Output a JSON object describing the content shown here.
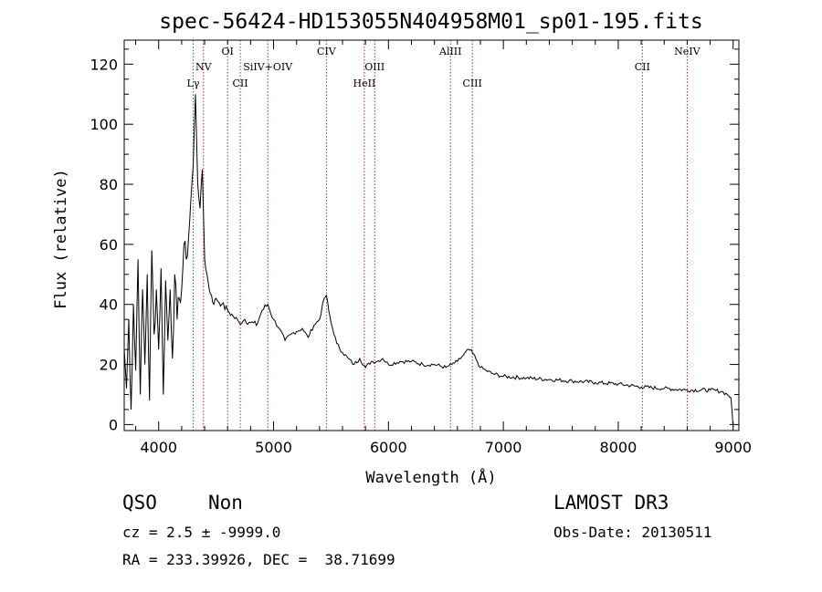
{
  "chart_data": {
    "type": "line",
    "title": "spec-56424-HD153055N404958M01_sp01-195.fits",
    "xlabel": "Wavelength (Å)",
    "ylabel": "Flux (relative)",
    "xlim": [
      3700,
      9050
    ],
    "ylim": [
      -2,
      128
    ],
    "x_ticks": [
      4000,
      5000,
      6000,
      7000,
      8000,
      9000
    ],
    "y_ticks": [
      0,
      20,
      40,
      60,
      80,
      100,
      120
    ],
    "grid": false,
    "series": [
      {
        "x": [
          3700,
          3720,
          3740,
          3760,
          3780,
          3800,
          3820,
          3840,
          3860,
          3880,
          3900,
          3920,
          3940,
          3960,
          3980,
          4000,
          4020,
          4040,
          4060,
          4080,
          4100,
          4120,
          4140,
          4160,
          4180,
          4200,
          4220,
          4240,
          4260,
          4280,
          4300,
          4320,
          4340,
          4360,
          4380,
          4400,
          4420,
          4440,
          4460,
          4480,
          4500,
          4550,
          4600,
          4650,
          4700,
          4750,
          4800,
          4850,
          4900,
          4950,
          5000,
          5050,
          5100,
          5150,
          5200,
          5250,
          5300,
          5350,
          5400,
          5440,
          5460,
          5480,
          5500,
          5550,
          5600,
          5650,
          5700,
          5750,
          5800,
          5850,
          5900,
          5950,
          6000,
          6100,
          6200,
          6300,
          6400,
          6500,
          6550,
          6600,
          6650,
          6700,
          6730,
          6760,
          6800,
          6850,
          6900,
          7000,
          7200,
          7400,
          7600,
          7800,
          8000,
          8200,
          8400,
          8600,
          8800,
          8900,
          8950,
          8980,
          9000
        ],
        "y": [
          25,
          12,
          35,
          5,
          40,
          18,
          55,
          10,
          45,
          20,
          50,
          8,
          58,
          30,
          45,
          25,
          52,
          10,
          48,
          28,
          45,
          22,
          50,
          35,
          42,
          45,
          60,
          55,
          62,
          75,
          86,
          110,
          80,
          72,
          85,
          55,
          50,
          45,
          43,
          40,
          42,
          40,
          38,
          36,
          34,
          35,
          34,
          33,
          38,
          40,
          35,
          32,
          28,
          30,
          31,
          32,
          29,
          33,
          35,
          42,
          43,
          38,
          34,
          27,
          24,
          22,
          20,
          22,
          19,
          21,
          21,
          22,
          20,
          21,
          21,
          20,
          20,
          19,
          20,
          21,
          23,
          25,
          24,
          22,
          19,
          18,
          17,
          16,
          15.5,
          15,
          14.5,
          14,
          13.5,
          12.5,
          12,
          11.5,
          11.5,
          11,
          10,
          9,
          -1
        ]
      }
    ],
    "annotations": [
      {
        "label": "Lγ",
        "x": 4300,
        "row": 2
      },
      {
        "label": "NV",
        "x": 4390,
        "row": 1
      },
      {
        "label": "OI",
        "x": 4600,
        "row": 0
      },
      {
        "label": "CII",
        "x": 4710,
        "row": 2
      },
      {
        "label": "SiIV+OIV",
        "x": 4950,
        "row": 1
      },
      {
        "label": "CIV",
        "x": 5460,
        "row": 0
      },
      {
        "label": "HeII",
        "x": 5790,
        "row": 2
      },
      {
        "label": "OIII",
        "x": 5880,
        "row": 1
      },
      {
        "label": "AlIII",
        "x": 6540,
        "row": 0
      },
      {
        "label": "CIII",
        "x": 6730,
        "row": 2
      },
      {
        "label": "CII",
        "x": 8210,
        "row": 1
      },
      {
        "label": "NeIV",
        "x": 8600,
        "row": 0
      }
    ]
  },
  "info": {
    "class": "QSO",
    "subclass": "Non",
    "survey": "LAMOST DR3",
    "cz": "cz = 2.5 ± -9999.0",
    "obs_date": "Obs-Date: 20130511",
    "radec": "RA = 233.39926, DEC =  38.71699"
  },
  "colors": {
    "line_marker": "#b03020",
    "spectrum": "#000000"
  }
}
